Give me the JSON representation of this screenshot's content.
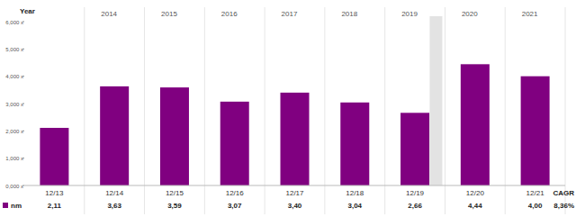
{
  "chart_data": {
    "type": "bar",
    "categories": [
      "12/13",
      "12/14",
      "12/15",
      "12/16",
      "12/17",
      "12/18",
      "12/19",
      "12/20",
      "12/21"
    ],
    "series": [
      {
        "name": "nm",
        "color": "#800080",
        "values": [
          2.11,
          3.63,
          3.59,
          3.07,
          3.4,
          3.04,
          2.66,
          4.44,
          4.0
        ],
        "value_labels": [
          "2,11",
          "3,63",
          "3,59",
          "3,07",
          "3,40",
          "3,04",
          "2,66",
          "4,44",
          "4,00"
        ]
      }
    ],
    "header": {
      "title": "Year",
      "years": [
        "2014",
        "2015",
        "2016",
        "2017",
        "2018",
        "2019",
        "2020",
        "2021"
      ]
    },
    "cagr": {
      "label": "CAGR",
      "value": 8.36,
      "value_label": "8,36%"
    },
    "ylim": [
      0,
      6
    ],
    "yticks": [
      {
        "value": 0,
        "label": "0,000 x"
      },
      {
        "value": 1,
        "label": "1,000 x"
      },
      {
        "value": 2,
        "label": "2,000 x"
      },
      {
        "value": 3,
        "label": "3,000 x"
      },
      {
        "value": 4,
        "label": "4,000 x"
      },
      {
        "value": 5,
        "label": "5,000 x"
      },
      {
        "value": 6,
        "label": "6,000 x"
      }
    ],
    "grid": true,
    "legend": "bottom",
    "data_labels": true
  }
}
